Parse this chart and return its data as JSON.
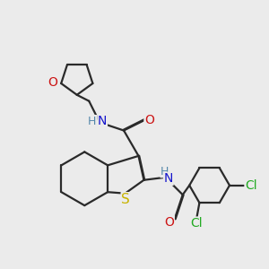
{
  "background_color": "#ebebeb",
  "bond_color": "#2a2a2a",
  "bond_width": 1.6,
  "atom_colors": {
    "C": "#2a2a2a",
    "N": "#1414cc",
    "O": "#cc1414",
    "S": "#c8b400",
    "Cl": "#22aa22",
    "H": "#5588aa"
  },
  "font_size": 10,
  "figsize": [
    3.0,
    3.0
  ],
  "dpi": 100
}
